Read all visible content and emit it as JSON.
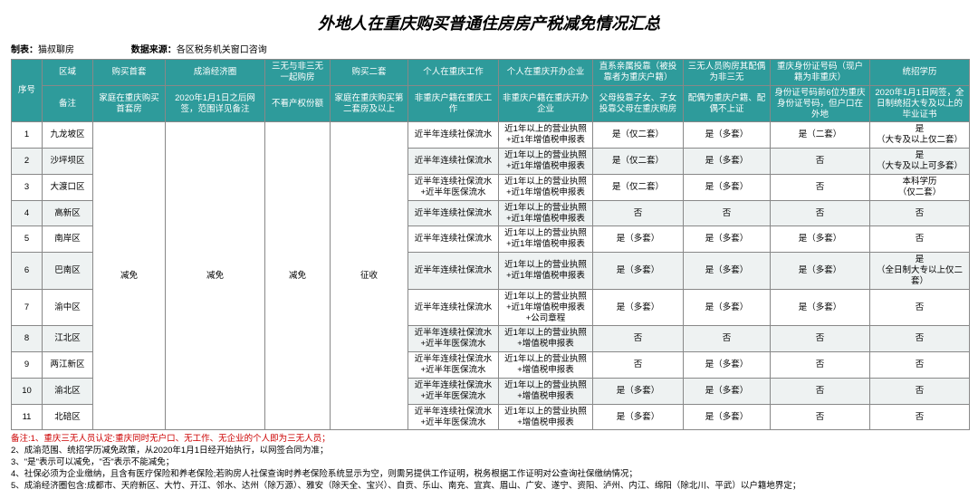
{
  "title": "外地人在重庆购买普通住房房产税减免情况汇总",
  "meta": {
    "maker_label": "制表：",
    "maker": "猫叔聊房",
    "source_label": "数据来源：",
    "source": "各区税务机关窗口咨询"
  },
  "header": {
    "row1": {
      "idx": "序号",
      "area": "区域",
      "first": "购买首套",
      "cy": "成渝经济圈",
      "sw": "三无与非三无一起购房",
      "second": "购买二套",
      "work": "个人在重庆工作",
      "biz": "个人在重庆开办企业",
      "rel": "直系亲属投靠（被投靠者为重庆户籍）",
      "spouse": "三无人员购房其配偶为非三无",
      "id": "重庆身份证号码（现户籍为非重庆）",
      "edu": "统招学历"
    },
    "row2": {
      "note": "备注",
      "first": "家庭在重庆购买首套房",
      "cy": "2020年1月1日之后网签，范围详见备注",
      "sw": "不看产权份额",
      "second": "家庭在重庆购买第二套房及以上",
      "work": "非重庆户籍在重庆工作",
      "biz": "非重庆户籍在重庆开办企业",
      "rel": "父母投靠子女、子女投靠父母在重庆购房",
      "spouse": "配偶为重庆户籍、配偶不上证",
      "id": "身份证号码前6位为重庆身份证号码，但户口在外地",
      "edu": "2020年1月1日网签，全日制统招大专及以上的毕业证书"
    }
  },
  "merged": {
    "first": "减免",
    "cy": "减免",
    "sw": "减免",
    "second": "征收"
  },
  "rows": [
    {
      "n": "1",
      "area": "九龙坡区",
      "work": "近半年连续社保流水",
      "biz": "近1年以上的营业执照+近1年增值税申报表",
      "rel": "是（仅二套）",
      "spouse": "是（多套）",
      "id": "是（二套）",
      "edu": "是\n（大专及以上仅二套）"
    },
    {
      "n": "2",
      "area": "沙坪坝区",
      "work": "近半年连续社保流水",
      "biz": "近1年以上的营业执照+近1年增值税申报表",
      "rel": "是（仅二套）",
      "spouse": "是（多套）",
      "id": "否",
      "edu": "是\n（大专及以上可多套）"
    },
    {
      "n": "3",
      "area": "大渡口区",
      "work": "近半年连续社保流水+近半年医保流水",
      "biz": "近1年以上的营业执照+近1年增值税申报表",
      "rel": "是（仅二套）",
      "spouse": "是（多套）",
      "id": "否",
      "edu": "本科学历\n（仅二套）"
    },
    {
      "n": "4",
      "area": "高新区",
      "work": "近半年连续社保流水",
      "biz": "近1年以上的营业执照+近1年增值税申报表",
      "rel": "否",
      "spouse": "否",
      "id": "否",
      "edu": "否"
    },
    {
      "n": "5",
      "area": "南岸区",
      "work": "近半年连续社保流水",
      "biz": "近1年以上的营业执照+近1年增值税申报表",
      "rel": "是（多套）",
      "spouse": "是（多套）",
      "id": "是（多套）",
      "edu": "否"
    },
    {
      "n": "6",
      "area": "巴南区",
      "work": "近半年连续社保流水",
      "biz": "近1年以上的营业执照+近1年增值税申报表",
      "rel": "是（多套）",
      "spouse": "是（多套）",
      "id": "是（多套）",
      "edu": "是\n（全日制大专以上仅二套）"
    },
    {
      "n": "7",
      "area": "渝中区",
      "work": "近半年连续社保流水",
      "biz": "近1年以上的营业执照+近1年增值税申报表+公司章程",
      "rel": "是（多套）",
      "spouse": "是（多套）",
      "id": "是（多套）",
      "edu": "否"
    },
    {
      "n": "8",
      "area": "江北区",
      "work": "近半年连续社保流水+近半年医保流水",
      "biz": "近1年以上的营业执照+增值税申报表",
      "rel": "否",
      "spouse": "否",
      "id": "否",
      "edu": "否"
    },
    {
      "n": "9",
      "area": "两江新区",
      "work": "近半年连续社保流水+近半年医保流水",
      "biz": "近1年以上的营业执照+增值税申报表",
      "rel": "否",
      "spouse": "是（多套）",
      "id": "否",
      "edu": "否"
    },
    {
      "n": "10",
      "area": "渝北区",
      "work": "近半年连续社保流水+近半年医保流水",
      "biz": "近1年以上的营业执照+增值税申报表",
      "rel": "是（多套）",
      "spouse": "是（多套）",
      "id": "否",
      "edu": "否"
    },
    {
      "n": "11",
      "area": "北碚区",
      "work": "近半年连续社保流水+近半年医保流水",
      "biz": "近1年以上的营业执照+增值税申报表",
      "rel": "是（多套）",
      "spouse": "是（多套）",
      "id": "否",
      "edu": "否"
    }
  ],
  "notes": [
    "备注:1、重庆三无人员认定:重庆同时无户口、无工作、无企业的个人即为三无人员；",
    "2、成渝范围、统招学历减免政策，从2020年1月1日经开始执行，以网签合同为准；",
    "3、\"是\"表示可以减免，\"否\"表示不能减免；",
    "4、社保必须为企业缴纳，且含有医疗保险和养老保险;若购房人社保查询时养老保险系统显示为空，则需另提供工作证明，税务根据工作证明对公查询社保缴纳情况；",
    "5、成渝经济圈包含:成都市、天府新区、大竹、开江、邻水、达州（除万源）、雅安（除天全、宝兴）、自贡、乐山、南充、宜宾、眉山、广安、遂宁、资阳、泸州、内江、绵阳（除北川、平武）以户籍地界定；"
  ]
}
